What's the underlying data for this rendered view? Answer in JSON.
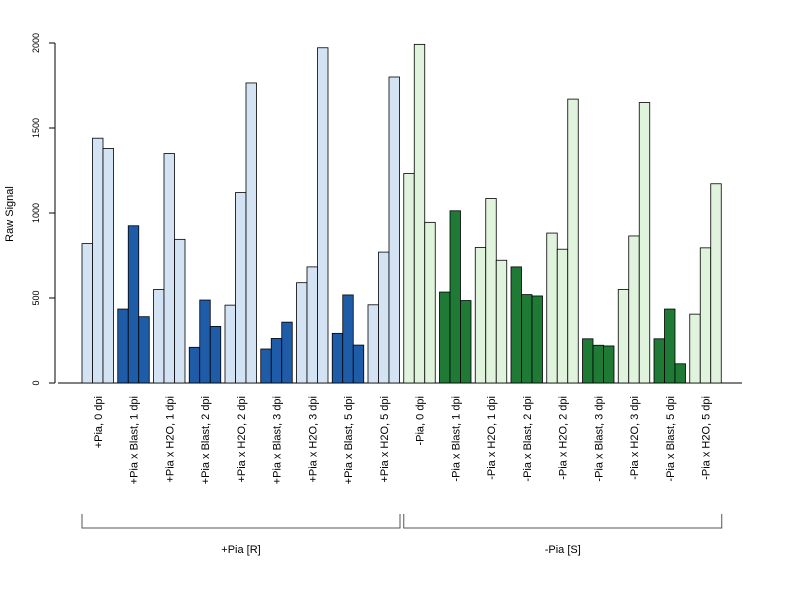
{
  "chart_data": {
    "type": "bar",
    "ylabel": "Raw Signal",
    "ylim": [
      0,
      2000
    ],
    "yticks": [
      0,
      500,
      1000,
      1500,
      2000
    ],
    "grid": false,
    "colors": {
      "pia_pos_light": "#d4e3f4",
      "pia_pos_dark": "#1f5ca8",
      "pia_neg_light": "#e0f3dc",
      "pia_neg_dark": "#1f7a35",
      "bar_border": "#000000"
    },
    "categories": [
      {
        "label": "+Pia, 0 dpi",
        "values": [
          820,
          1440,
          1380
        ],
        "color": "pia_pos_light"
      },
      {
        "label": "+Pia x Blast, 1 dpi",
        "values": [
          435,
          925,
          390
        ],
        "color": "pia_pos_dark"
      },
      {
        "label": "+Pia x H2O, 1 dpi",
        "values": [
          550,
          1350,
          845
        ],
        "color": "pia_pos_light"
      },
      {
        "label": "+Pia x Blast, 2 dpi",
        "values": [
          210,
          488,
          333
        ],
        "color": "pia_pos_dark"
      },
      {
        "label": "+Pia x H2O, 2 dpi",
        "values": [
          458,
          1120,
          1765
        ],
        "color": "pia_pos_light"
      },
      {
        "label": "+Pia x Blast, 3 dpi",
        "values": [
          200,
          262,
          358
        ],
        "color": "pia_pos_dark"
      },
      {
        "label": "+Pia x H2O, 3 dpi",
        "values": [
          590,
          683,
          1972
        ],
        "color": "pia_pos_light"
      },
      {
        "label": "+Pia x Blast, 5 dpi",
        "values": [
          292,
          518,
          223
        ],
        "color": "pia_pos_dark"
      },
      {
        "label": "+Pia x H2O, 5 dpi",
        "values": [
          460,
          770,
          1800
        ],
        "color": "pia_pos_light"
      },
      {
        "label": "-Pia, 0 dpi",
        "values": [
          1232,
          1992,
          945
        ],
        "color": "pia_neg_light"
      },
      {
        "label": "-Pia x Blast, 1 dpi",
        "values": [
          535,
          1013,
          485
        ],
        "color": "pia_neg_dark"
      },
      {
        "label": "-Pia x H2O, 1 dpi",
        "values": [
          797,
          1085,
          722
        ],
        "color": "pia_neg_light"
      },
      {
        "label": "-Pia x Blast, 2 dpi",
        "values": [
          683,
          520,
          512
        ],
        "color": "pia_neg_dark"
      },
      {
        "label": "-Pia x H2O, 2 dpi",
        "values": [
          882,
          787,
          1670
        ],
        "color": "pia_neg_light"
      },
      {
        "label": "-Pia x Blast, 3 dpi",
        "values": [
          260,
          222,
          218
        ],
        "color": "pia_neg_dark"
      },
      {
        "label": "-Pia x H2O, 3 dpi",
        "values": [
          550,
          865,
          1650
        ],
        "color": "pia_neg_light"
      },
      {
        "label": "-Pia x Blast, 5 dpi",
        "values": [
          260,
          435,
          113
        ],
        "color": "pia_neg_dark"
      },
      {
        "label": "-Pia x H2O, 5 dpi",
        "values": [
          405,
          795,
          1172
        ],
        "color": "pia_neg_light"
      }
    ],
    "groups": [
      {
        "label": "+Pia [R]",
        "from": 0,
        "to": 8
      },
      {
        "label": "-Pia [S]",
        "from": 9,
        "to": 17
      }
    ]
  }
}
